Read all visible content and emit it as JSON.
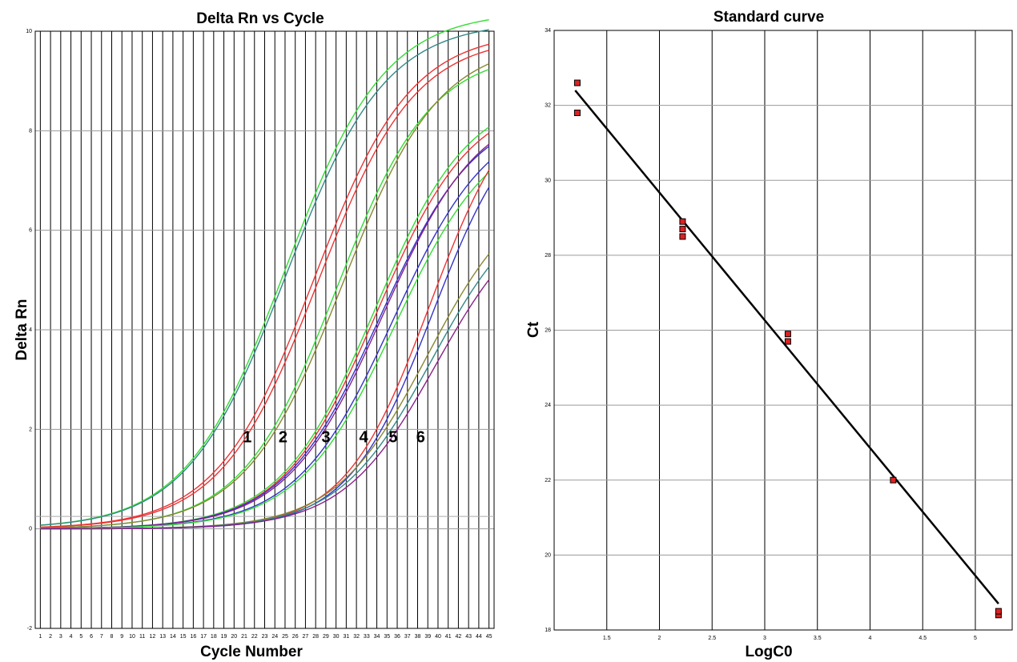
{
  "chart_data": [
    {
      "type": "line",
      "title": "Delta Rn vs Cycle",
      "xlabel": "Cycle Number",
      "ylabel": "Delta Rn",
      "xlim": [
        0.5,
        45.5
      ],
      "ylim": [
        -2,
        10
      ],
      "x_ticks": [
        1,
        2,
        3,
        4,
        5,
        6,
        7,
        8,
        9,
        10,
        11,
        12,
        13,
        14,
        15,
        16,
        17,
        18,
        19,
        20,
        21,
        22,
        23,
        24,
        25,
        26,
        27,
        28,
        29,
        30,
        31,
        32,
        33,
        34,
        35,
        36,
        37,
        38,
        39,
        40,
        41,
        42,
        43,
        44,
        45
      ],
      "y_ticks": [
        -2,
        0,
        2,
        4,
        6,
        8,
        10
      ],
      "grid": true,
      "threshold": 0.25,
      "curve_labels": [
        {
          "text": "1",
          "x": 21.3,
          "y": 1.85
        },
        {
          "text": "2",
          "x": 24.8,
          "y": 1.85
        },
        {
          "text": "3",
          "x": 29.0,
          "y": 1.85
        },
        {
          "text": "4",
          "x": 32.7,
          "y": 1.85
        },
        {
          "text": "5",
          "x": 35.6,
          "y": 1.85
        },
        {
          "text": "6",
          "x": 38.3,
          "y": 1.85
        }
      ],
      "series": [
        {
          "color": "#33dd33",
          "x0": 25.0,
          "plateau": 10.4,
          "k": 0.205
        },
        {
          "color": "#338888",
          "x0": 25.1,
          "plateau": 10.2,
          "k": 0.205
        },
        {
          "color": "#ee3333",
          "x0": 27.8,
          "plateau": 10.0,
          "k": 0.21
        },
        {
          "color": "#ee3333",
          "x0": 28.2,
          "plateau": 9.9,
          "k": 0.21
        },
        {
          "color": "#33dd33",
          "x0": 30.0,
          "plateau": 9.6,
          "k": 0.215
        },
        {
          "color": "#888833",
          "x0": 30.6,
          "plateau": 9.8,
          "k": 0.21
        },
        {
          "color": "#33dd33",
          "x0": 33.8,
          "plateau": 8.8,
          "k": 0.215
        },
        {
          "color": "#ee3333",
          "x0": 34.0,
          "plateau": 8.7,
          "k": 0.215
        },
        {
          "color": "#3333cc",
          "x0": 34.3,
          "plateau": 8.5,
          "k": 0.21
        },
        {
          "color": "#882288",
          "x0": 34.6,
          "plateau": 8.6,
          "k": 0.21
        },
        {
          "color": "#3333cc",
          "x0": 35.6,
          "plateau": 8.4,
          "k": 0.21
        },
        {
          "color": "#33dd33",
          "x0": 35.8,
          "plateau": 8.2,
          "k": 0.21
        },
        {
          "color": "#ee3333",
          "x0": 39.2,
          "plateau": 9.0,
          "k": 0.24
        },
        {
          "color": "#3333cc",
          "x0": 39.5,
          "plateau": 8.7,
          "k": 0.24
        },
        {
          "color": "#888833",
          "x0": 39.0,
          "plateau": 7.0,
          "k": 0.22
        },
        {
          "color": "#338888",
          "x0": 39.4,
          "plateau": 6.8,
          "k": 0.22
        },
        {
          "color": "#882288",
          "x0": 39.8,
          "plateau": 6.6,
          "k": 0.22
        }
      ]
    },
    {
      "type": "scatter",
      "title": "Standard curve",
      "xlabel": "LogC0",
      "ylabel": "Ct",
      "xlim": [
        1.0,
        5.35
      ],
      "ylim": [
        18,
        34
      ],
      "x_ticks": [
        1.5,
        2,
        2.5,
        3,
        3.5,
        4,
        4.5,
        5
      ],
      "x_tick_labels": [
        "1.5",
        "2",
        "2.5",
        "3",
        "3.5",
        "4",
        "4.5",
        "5"
      ],
      "y_ticks": [
        18,
        20,
        22,
        24,
        26,
        28,
        30,
        32,
        34
      ],
      "grid": true,
      "points": [
        {
          "x": 1.22,
          "y": 32.6
        },
        {
          "x": 1.22,
          "y": 31.8
        },
        {
          "x": 2.22,
          "y": 28.9
        },
        {
          "x": 2.22,
          "y": 28.7
        },
        {
          "x": 2.22,
          "y": 28.5
        },
        {
          "x": 3.22,
          "y": 25.9
        },
        {
          "x": 3.22,
          "y": 25.7
        },
        {
          "x": 4.22,
          "y": 22.0
        },
        {
          "x": 5.22,
          "y": 18.4
        },
        {
          "x": 5.22,
          "y": 18.5
        }
      ],
      "fit_line": {
        "x": [
          1.2,
          5.22
        ],
        "y": [
          32.4,
          18.7
        ]
      },
      "marker_color": "#dd2222",
      "line_color": "#000000"
    }
  ]
}
